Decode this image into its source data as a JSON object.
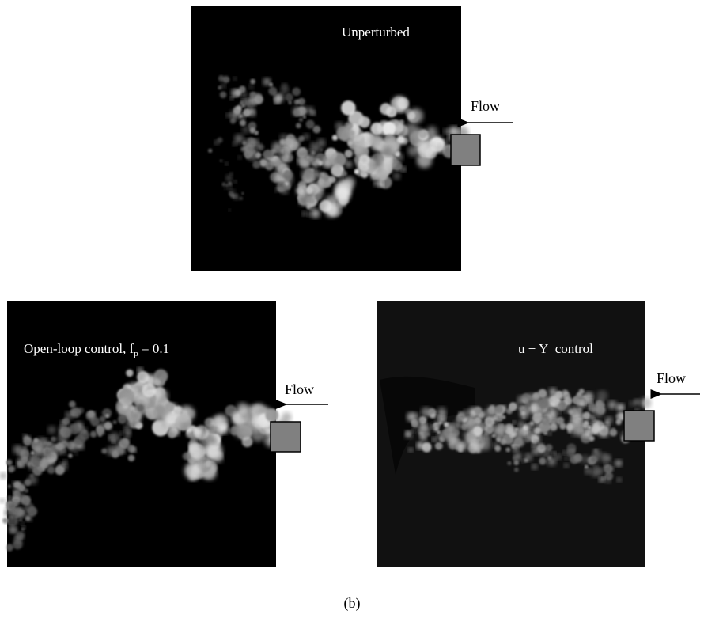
{
  "panels": [
    {
      "label": "Unperturbed",
      "flow": "Flow"
    },
    {
      "label": "Open-loop control, f",
      "label_subscript": "p",
      "label_suffix": " = 0.1",
      "flow": "Flow"
    },
    {
      "label": "u + Y_control",
      "flow": "Flow"
    }
  ],
  "caption": "(b)"
}
